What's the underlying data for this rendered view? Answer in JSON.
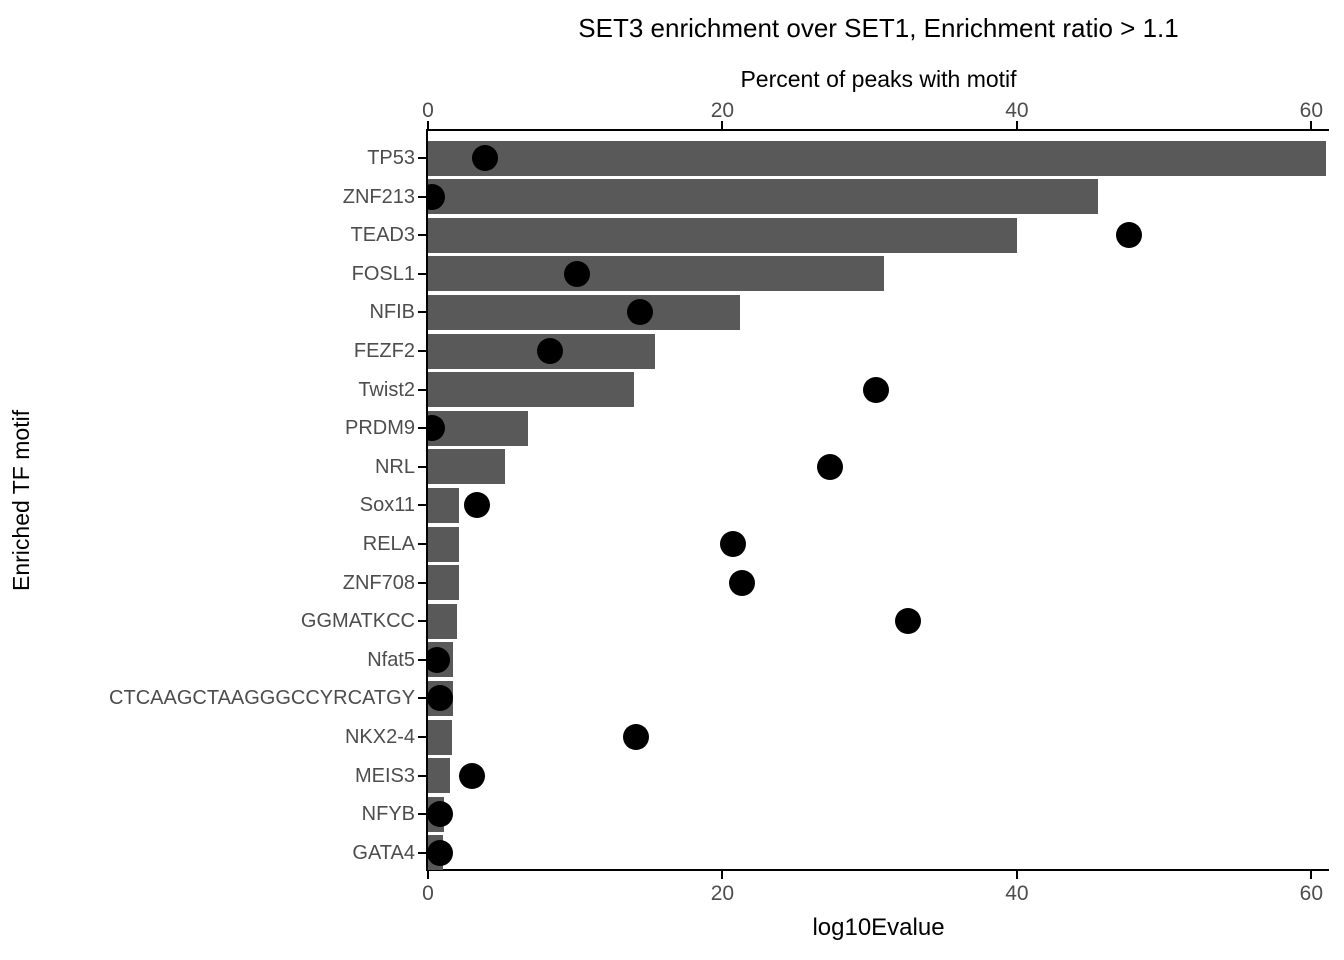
{
  "title": "SET3 enrichment over SET1, Enrichment ratio > 1.1",
  "chart_data": {
    "type": "bar",
    "orientation": "horizontal",
    "title": "SET3 enrichment over SET1, Enrichment ratio > 1.1",
    "top_axis_label": "Percent of peaks with motif",
    "bottom_axis_label": "log10Evalue",
    "ylabel": "Enriched TF motif",
    "xlim": [
      0,
      61.2
    ],
    "x_ticks": [
      0,
      20,
      40,
      60
    ],
    "grid": false,
    "legend": "none",
    "categories": [
      "TP53",
      "ZNF213",
      "TEAD3",
      "FOSL1",
      "NFIB",
      "FEZF2",
      "Twist2",
      "PRDM9",
      "NRL",
      "Sox11",
      "RELA",
      "ZNF708",
      "GGMATKCC",
      "Nfat5",
      "CTCAAGCTAAGGGCCYRCATGY",
      "NKX2-4",
      "MEIS3",
      "NFYB",
      "GATA4"
    ],
    "series": [
      {
        "name": "Percent of peaks with motif",
        "mark": "bar",
        "axis": "top",
        "values": [
          61,
          45.5,
          40,
          31,
          21.2,
          15.4,
          14,
          6.8,
          5.2,
          2.1,
          2.1,
          2.1,
          2.0,
          1.7,
          1.7,
          1.6,
          1.5,
          1.1,
          1.0
        ]
      },
      {
        "name": "log10Evalue",
        "mark": "point",
        "axis": "bottom",
        "values": [
          3.9,
          0.3,
          47.6,
          10.1,
          14.4,
          8.3,
          30.4,
          0.3,
          27.3,
          3.3,
          20.7,
          21.3,
          32.6,
          0.6,
          0.8,
          14.1,
          3.0,
          0.8,
          0.8
        ]
      }
    ],
    "colors": {
      "bar": "#595959",
      "dot": "#000000",
      "axis_text": "#4D4D4D",
      "title_text": "#000000",
      "axis_line": "#000000",
      "background": "#FFFFFF"
    }
  }
}
